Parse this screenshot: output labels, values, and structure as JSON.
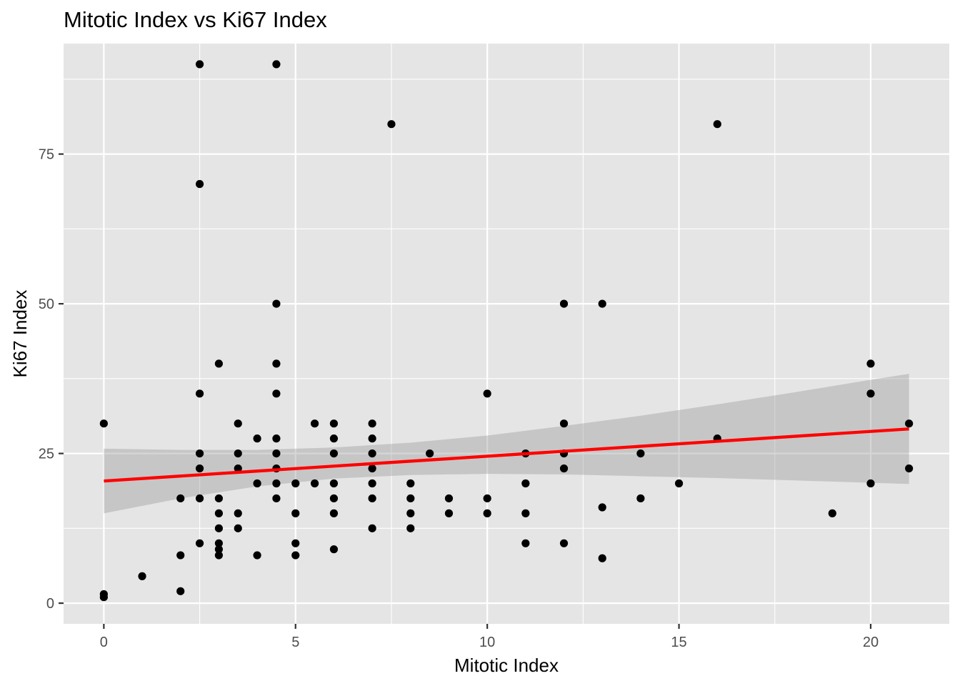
{
  "chart_data": {
    "type": "scatter",
    "title": "Mitotic Index vs Ki67 Index",
    "xlabel": "Mitotic Index",
    "ylabel": "Ki67 Index",
    "xlim": [
      -1.05,
      22.05
    ],
    "ylim": [
      -3.45,
      93.45
    ],
    "x_ticks": [
      0,
      5,
      10,
      15,
      20
    ],
    "y_ticks": [
      0,
      25,
      50,
      75
    ],
    "x_minor_ticks": [
      2.5,
      7.5,
      12.5,
      17.5
    ],
    "y_minor_ticks": [
      12.5,
      37.5,
      62.5,
      87.5
    ],
    "grid": true,
    "points": [
      {
        "x": 0,
        "y": 30
      },
      {
        "x": 0,
        "y": 1.5
      },
      {
        "x": 0,
        "y": 1
      },
      {
        "x": 1,
        "y": 4.5
      },
      {
        "x": 2,
        "y": 17.5
      },
      {
        "x": 2,
        "y": 8
      },
      {
        "x": 2,
        "y": 2
      },
      {
        "x": 2.5,
        "y": 90
      },
      {
        "x": 2.5,
        "y": 70
      },
      {
        "x": 2.5,
        "y": 35
      },
      {
        "x": 2.5,
        "y": 25
      },
      {
        "x": 2.5,
        "y": 22.5
      },
      {
        "x": 2.5,
        "y": 17.5
      },
      {
        "x": 2.5,
        "y": 10
      },
      {
        "x": 3,
        "y": 40
      },
      {
        "x": 3,
        "y": 17.5
      },
      {
        "x": 3,
        "y": 15
      },
      {
        "x": 3,
        "y": 12.5
      },
      {
        "x": 3,
        "y": 10
      },
      {
        "x": 3,
        "y": 9
      },
      {
        "x": 3,
        "y": 8
      },
      {
        "x": 3.5,
        "y": 30
      },
      {
        "x": 3.5,
        "y": 25
      },
      {
        "x": 3.5,
        "y": 22.5
      },
      {
        "x": 3.5,
        "y": 15
      },
      {
        "x": 3.5,
        "y": 12.5
      },
      {
        "x": 4,
        "y": 27.5
      },
      {
        "x": 4,
        "y": 20
      },
      {
        "x": 4,
        "y": 8
      },
      {
        "x": 4.5,
        "y": 90
      },
      {
        "x": 4.5,
        "y": 50
      },
      {
        "x": 4.5,
        "y": 40
      },
      {
        "x": 4.5,
        "y": 35
      },
      {
        "x": 4.5,
        "y": 27.5
      },
      {
        "x": 4.5,
        "y": 25
      },
      {
        "x": 4.5,
        "y": 22.5
      },
      {
        "x": 4.5,
        "y": 20
      },
      {
        "x": 4.5,
        "y": 17.5
      },
      {
        "x": 5,
        "y": 20
      },
      {
        "x": 5,
        "y": 15
      },
      {
        "x": 5,
        "y": 10
      },
      {
        "x": 5,
        "y": 8
      },
      {
        "x": 5.5,
        "y": 30
      },
      {
        "x": 5.5,
        "y": 20
      },
      {
        "x": 6,
        "y": 30
      },
      {
        "x": 6,
        "y": 27.5
      },
      {
        "x": 6,
        "y": 25
      },
      {
        "x": 6,
        "y": 20
      },
      {
        "x": 6,
        "y": 17.5
      },
      {
        "x": 6,
        "y": 15
      },
      {
        "x": 6,
        "y": 9
      },
      {
        "x": 7,
        "y": 30
      },
      {
        "x": 7,
        "y": 27.5
      },
      {
        "x": 7,
        "y": 25
      },
      {
        "x": 7,
        "y": 22.5
      },
      {
        "x": 7,
        "y": 20
      },
      {
        "x": 7,
        "y": 17.5
      },
      {
        "x": 7,
        "y": 12.5
      },
      {
        "x": 7.5,
        "y": 80
      },
      {
        "x": 8,
        "y": 20
      },
      {
        "x": 8,
        "y": 17.5
      },
      {
        "x": 8,
        "y": 15
      },
      {
        "x": 8,
        "y": 12.5
      },
      {
        "x": 8.5,
        "y": 25
      },
      {
        "x": 9,
        "y": 17.5
      },
      {
        "x": 9,
        "y": 15
      },
      {
        "x": 10,
        "y": 35
      },
      {
        "x": 10,
        "y": 17.5
      },
      {
        "x": 10,
        "y": 15
      },
      {
        "x": 11,
        "y": 25
      },
      {
        "x": 11,
        "y": 20
      },
      {
        "x": 11,
        "y": 15
      },
      {
        "x": 11,
        "y": 10
      },
      {
        "x": 12,
        "y": 50
      },
      {
        "x": 12,
        "y": 30
      },
      {
        "x": 12,
        "y": 25
      },
      {
        "x": 12,
        "y": 22.5
      },
      {
        "x": 12,
        "y": 10
      },
      {
        "x": 13,
        "y": 50
      },
      {
        "x": 13,
        "y": 16
      },
      {
        "x": 13,
        "y": 7.5
      },
      {
        "x": 14,
        "y": 25
      },
      {
        "x": 14,
        "y": 17.5
      },
      {
        "x": 15,
        "y": 20
      },
      {
        "x": 16,
        "y": 80
      },
      {
        "x": 16,
        "y": 27.5
      },
      {
        "x": 19,
        "y": 15
      },
      {
        "x": 20,
        "y": 40
      },
      {
        "x": 20,
        "y": 35
      },
      {
        "x": 20,
        "y": 20
      },
      {
        "x": 21,
        "y": 30
      },
      {
        "x": 21,
        "y": 22.5
      }
    ],
    "fit_line": {
      "color": "#ff0000",
      "x": [
        0,
        21
      ],
      "y": [
        20.4,
        29.1
      ]
    },
    "confidence_band": {
      "color": "#999999",
      "x": [
        0,
        2,
        4,
        6,
        8,
        10,
        12,
        14,
        16,
        18,
        20,
        21
      ],
      "lower": [
        15.0,
        17.5,
        19.5,
        20.8,
        21.4,
        21.6,
        21.5,
        21.2,
        20.9,
        20.5,
        20.1,
        19.9
      ],
      "upper": [
        25.8,
        25.6,
        25.6,
        26.0,
        26.8,
        28.0,
        29.6,
        31.3,
        33.2,
        35.2,
        37.3,
        38.3
      ]
    },
    "point_color": "#000000",
    "panel_background": "#e5e5e5",
    "grid_color": "#ffffff"
  }
}
